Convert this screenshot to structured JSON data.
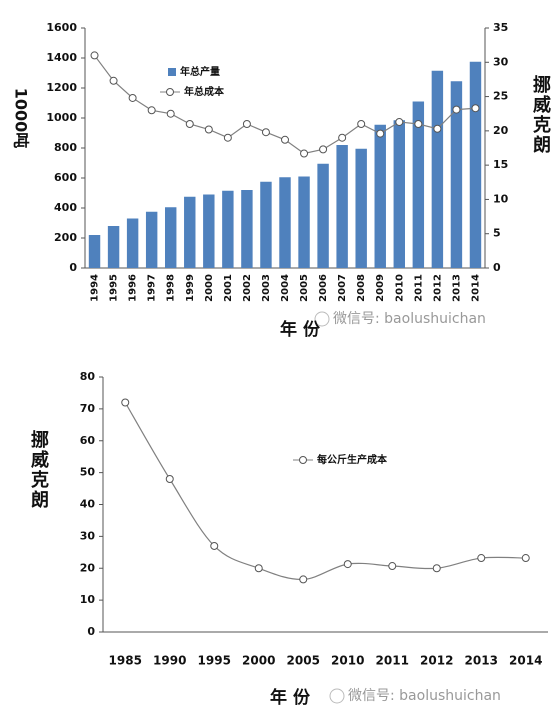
{
  "chart_data": [
    {
      "type": "bar",
      "categories": [
        "1994",
        "1995",
        "1996",
        "1997",
        "1998",
        "1999",
        "2000",
        "2001",
        "2002",
        "2003",
        "2004",
        "2005",
        "2006",
        "2007",
        "2008",
        "2009",
        "2010",
        "2011",
        "2012",
        "2013",
        "2014"
      ],
      "series": [
        {
          "name": "年总产量",
          "type": "bar",
          "color": "#4f81bd",
          "values": [
            220,
            280,
            330,
            375,
            405,
            475,
            490,
            515,
            520,
            575,
            605,
            610,
            695,
            820,
            795,
            955,
            985,
            1110,
            1315,
            1245,
            1375
          ]
        },
        {
          "name": "年总成本",
          "type": "line",
          "axis": "y2",
          "color": "#808080",
          "values": [
            31,
            27.3,
            24.8,
            23,
            22.5,
            21,
            20.2,
            19,
            21,
            19.8,
            18.7,
            16.7,
            17.3,
            19,
            21,
            19.6,
            21.3,
            21,
            20.3,
            23.1,
            23.3
          ]
        }
      ],
      "ylim": [
        0,
        1600
      ],
      "yticks": [
        0,
        200,
        400,
        600,
        800,
        1000,
        1200,
        1400,
        1600
      ],
      "y2lim": [
        0,
        35
      ],
      "y2ticks": [
        0,
        5,
        10,
        15,
        20,
        25,
        30,
        35
      ],
      "xlabel": "年 份",
      "ylabel": "1000吨",
      "y2label": "挪威克朗",
      "legend": "upper left",
      "annotation": "微信号: baolushuichan"
    },
    {
      "type": "line",
      "categories": [
        "1985",
        "1990",
        "1995",
        "2000",
        "2005",
        "2010",
        "2011",
        "2012",
        "2013",
        "2014"
      ],
      "series": [
        {
          "name": "每公斤生产成本",
          "color": "#808080",
          "values": [
            72,
            48,
            27,
            20,
            16.5,
            21.3,
            20.7,
            20,
            23.2,
            23.2
          ]
        }
      ],
      "ylim": [
        0,
        80
      ],
      "yticks": [
        0,
        10,
        20,
        30,
        40,
        50,
        60,
        70,
        80
      ],
      "smooth": true,
      "xlabel": "年 份",
      "ylabel": "挪威克朗",
      "legend": "center",
      "annotation": "微信号: baolushuichan"
    }
  ]
}
